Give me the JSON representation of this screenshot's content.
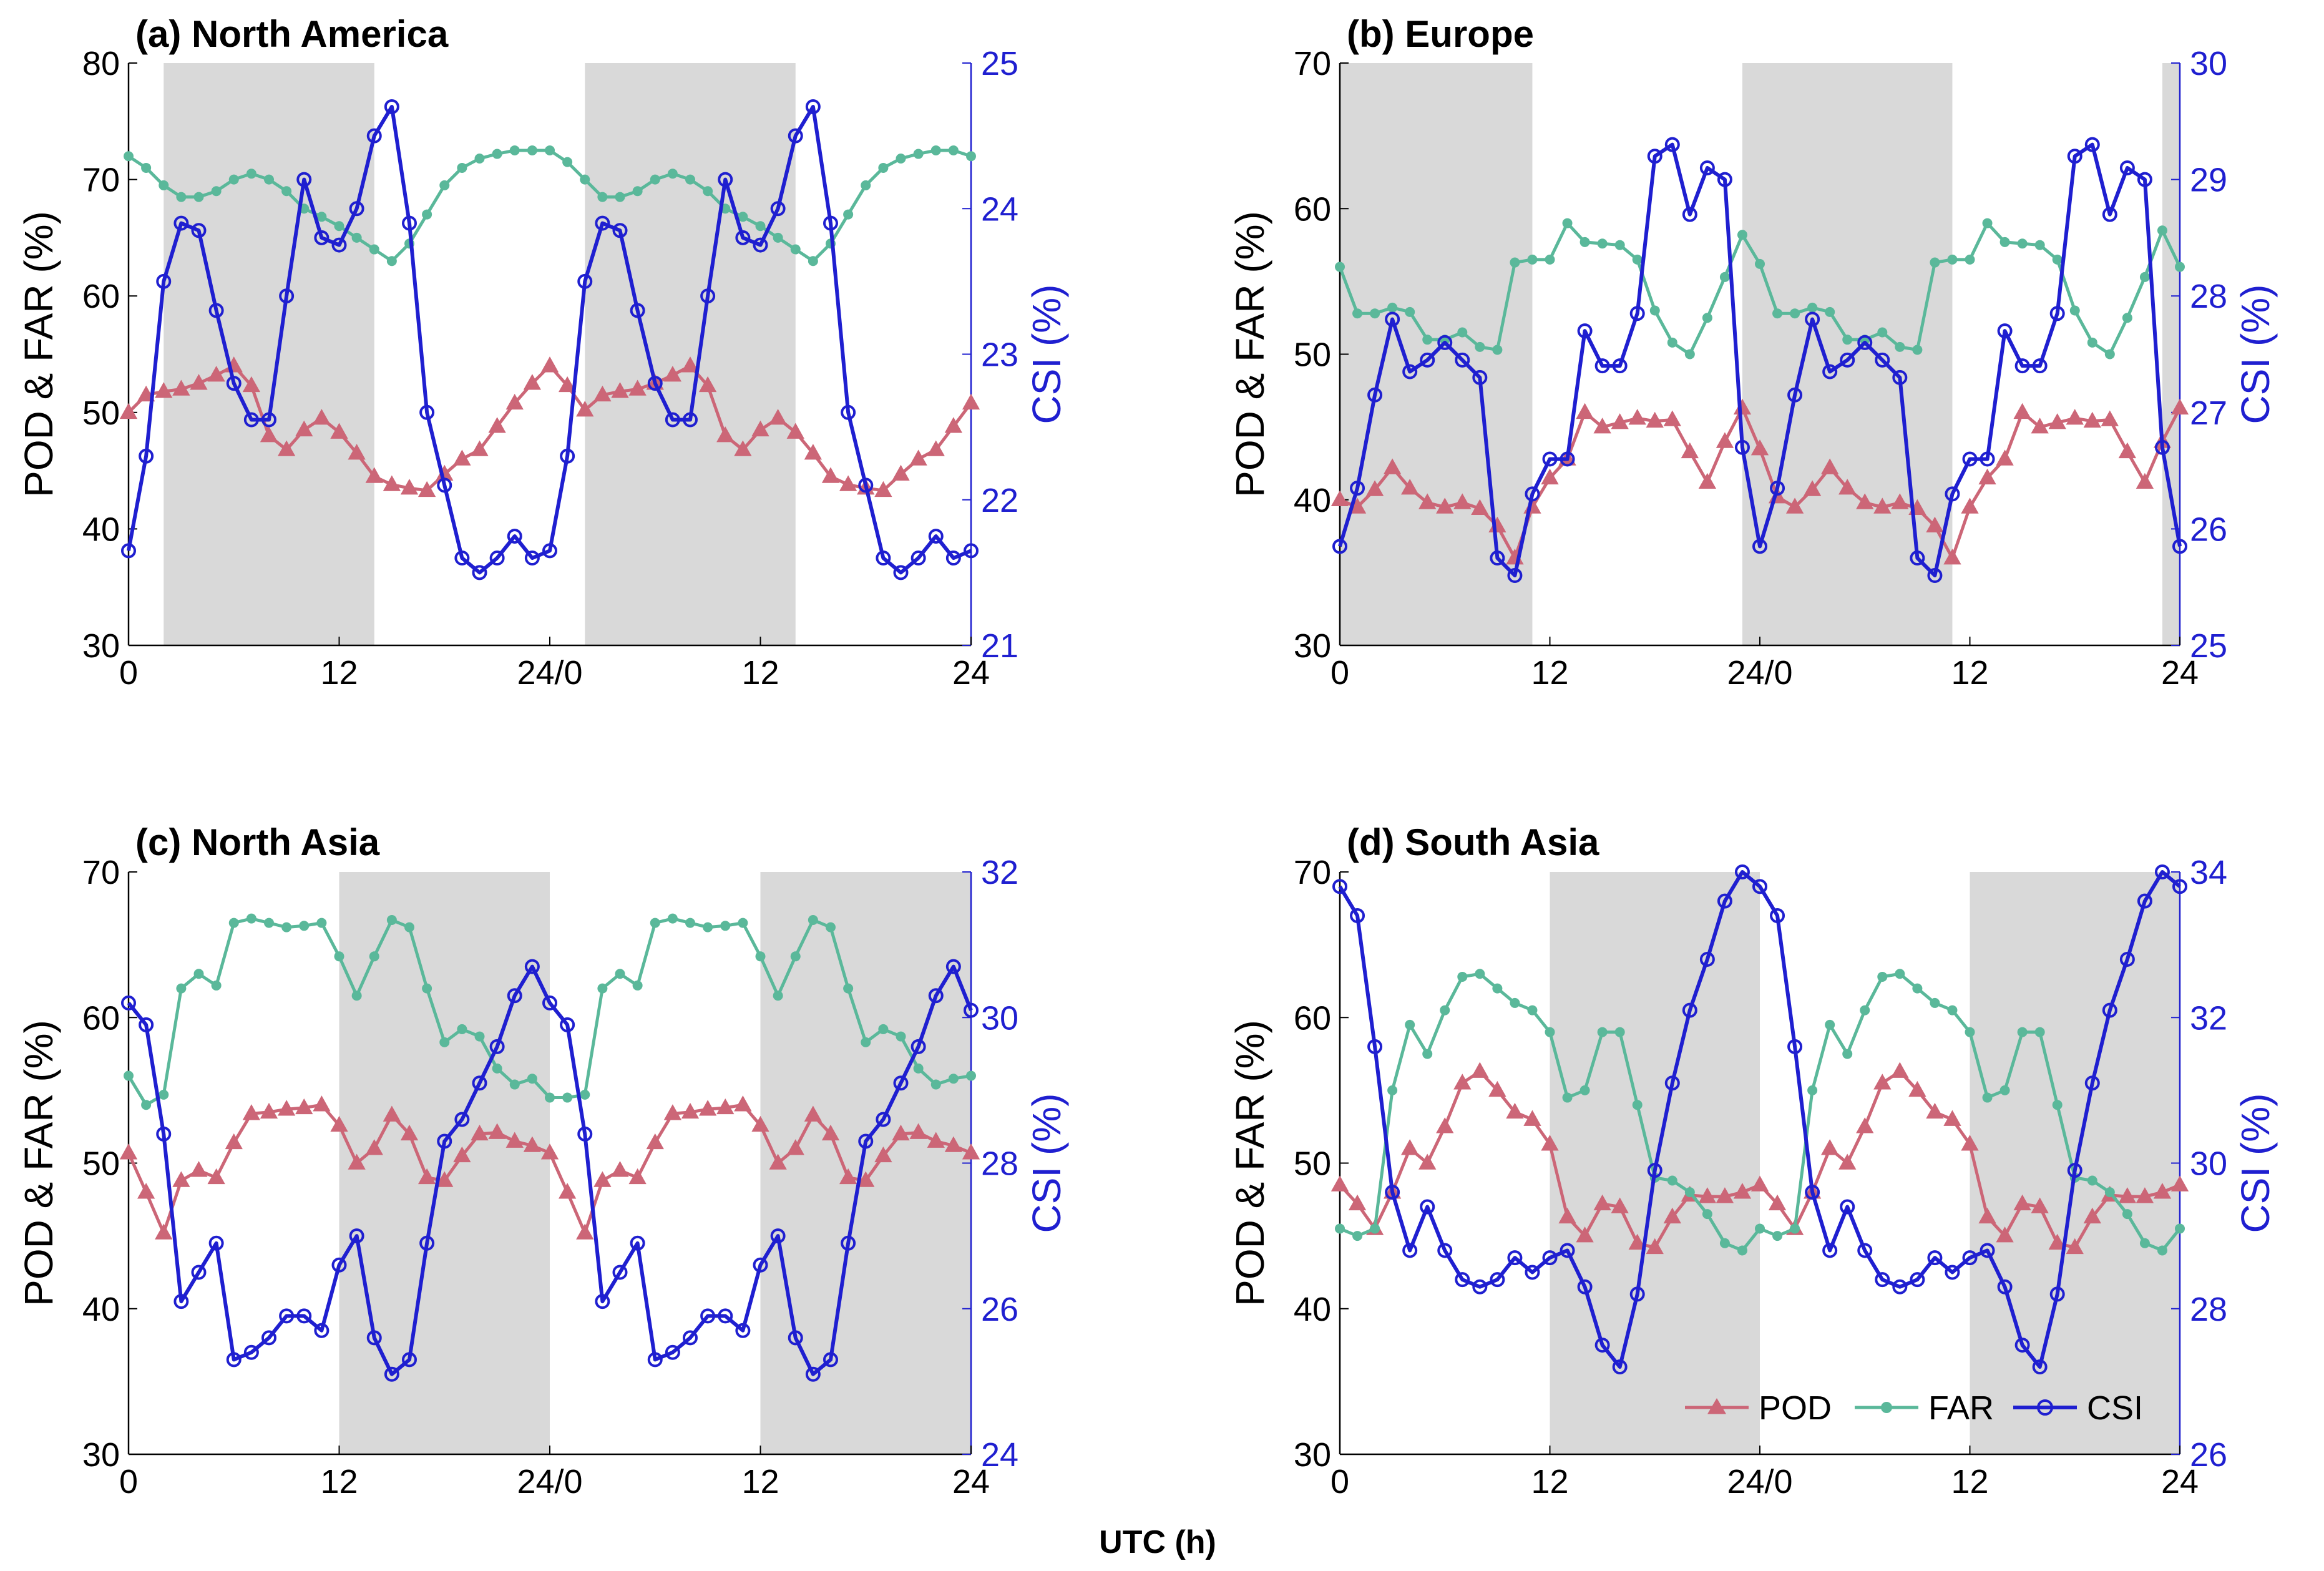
{
  "figure": {
    "xlabel": "UTC (h)",
    "x_tick_labels": [
      "0",
      "12",
      "24/0",
      "12",
      "24"
    ],
    "left_ylabel": "POD & FAR (%)",
    "right_ylabel": "CSI (%)",
    "legend": [
      "POD",
      "FAR",
      "CSI"
    ],
    "colors": {
      "pod": "#cc6677",
      "far": "#5ab89a",
      "csi": "#1f1fd0",
      "shade": "#d9d9d9",
      "axis_right": "#1f1fd0"
    }
  },
  "chart_data": [
    {
      "type": "line",
      "title": "(a) North America",
      "x": [
        0,
        1,
        2,
        3,
        4,
        5,
        6,
        7,
        8,
        9,
        10,
        11,
        12,
        13,
        14,
        15,
        16,
        17,
        18,
        19,
        20,
        21,
        22,
        23,
        24,
        25,
        26,
        27,
        28,
        29,
        30,
        31,
        32,
        33,
        34,
        35,
        36,
        37,
        38,
        39,
        40,
        41,
        42,
        43,
        44,
        45,
        46,
        47,
        48
      ],
      "xlim": [
        0,
        48
      ],
      "shaded": [
        [
          2,
          14
        ],
        [
          26,
          38
        ]
      ],
      "left_ylim": [
        30,
        80
      ],
      "left_yticks": [
        30,
        40,
        50,
        60,
        70,
        80
      ],
      "right_ylim": [
        21,
        25
      ],
      "right_yticks": [
        21,
        22,
        23,
        24,
        25
      ],
      "series": [
        {
          "name": "POD",
          "axis": "left",
          "values": [
            50,
            51.5,
            51.8,
            52,
            52.5,
            53.2,
            54,
            52.3,
            48,
            46.8,
            48.5,
            49.5,
            48.3,
            46.5,
            44.5,
            43.8,
            43.5,
            43.3,
            44.7,
            46,
            46.8,
            48.8,
            50.8,
            52.5,
            54,
            52.3,
            50.2,
            51.5,
            51.8,
            52,
            52.5,
            53.2,
            54,
            52.3,
            48,
            46.8,
            48.5,
            49.5,
            48.3,
            46.5,
            44.5,
            43.8,
            43.5,
            43.3,
            44.7,
            46,
            46.8,
            48.8,
            50.8
          ]
        },
        {
          "name": "FAR",
          "axis": "left",
          "values": [
            72,
            71,
            69.5,
            68.5,
            68.5,
            69,
            70,
            70.5,
            70,
            69,
            67.5,
            66.8,
            66,
            65,
            64,
            63,
            64.5,
            67,
            69.5,
            71,
            71.8,
            72.2,
            72.5,
            72.5,
            72.5,
            71.5,
            70,
            68.5,
            68.5,
            69,
            70,
            70.5,
            70,
            69,
            67.5,
            66.8,
            66,
            65,
            64,
            63,
            64.5,
            67,
            69.5,
            71,
            71.8,
            72.2,
            72.5,
            72.5,
            72
          ]
        },
        {
          "name": "CSI",
          "axis": "right",
          "values": [
            21.65,
            22.3,
            23.5,
            23.9,
            23.85,
            23.3,
            22.8,
            22.55,
            22.55,
            23.4,
            24.2,
            23.8,
            23.75,
            24,
            24.5,
            24.7,
            23.9,
            22.6,
            22.1,
            21.6,
            21.5,
            21.6,
            21.75,
            21.6,
            21.65,
            22.3,
            23.5,
            23.9,
            23.85,
            23.3,
            22.8,
            22.55,
            22.55,
            23.4,
            24.2,
            23.8,
            23.75,
            24,
            24.5,
            24.7,
            23.9,
            22.6,
            22.1,
            21.6,
            21.5,
            21.6,
            21.75,
            21.6,
            21.65
          ]
        }
      ]
    },
    {
      "type": "line",
      "title": "(b) Europe",
      "x": [
        0,
        1,
        2,
        3,
        4,
        5,
        6,
        7,
        8,
        9,
        10,
        11,
        12,
        13,
        14,
        15,
        16,
        17,
        18,
        19,
        20,
        21,
        22,
        23,
        24,
        25,
        26,
        27,
        28,
        29,
        30,
        31,
        32,
        33,
        34,
        35,
        36,
        37,
        38,
        39,
        40,
        41,
        42,
        43,
        44,
        45,
        46,
        47,
        48
      ],
      "xlim": [
        0,
        48
      ],
      "shaded": [
        [
          0,
          11
        ],
        [
          23,
          35
        ],
        [
          47,
          48
        ]
      ],
      "left_ylim": [
        30,
        70
      ],
      "left_yticks": [
        30,
        40,
        50,
        60,
        70
      ],
      "right_ylim": [
        25,
        30
      ],
      "right_yticks": [
        25,
        26,
        27,
        28,
        29,
        30
      ],
      "series": [
        {
          "name": "POD",
          "axis": "left",
          "values": [
            40,
            39.5,
            40.7,
            42.2,
            40.8,
            39.8,
            39.5,
            39.8,
            39.4,
            38.2,
            36,
            39.5,
            41.5,
            42.8,
            46,
            45,
            45.3,
            45.6,
            45.4,
            45.5,
            43.3,
            41.2,
            44,
            46.3,
            43.5,
            40.2,
            39.5,
            40.7,
            42.2,
            40.8,
            39.8,
            39.5,
            39.8,
            39.4,
            38.2,
            36,
            39.5,
            41.5,
            42.8,
            46,
            45,
            45.3,
            45.6,
            45.4,
            45.5,
            43.3,
            41.2,
            44,
            46.3
          ]
        },
        {
          "name": "FAR",
          "axis": "left",
          "values": [
            56,
            52.8,
            52.8,
            53.2,
            52.9,
            51,
            51,
            51.5,
            50.5,
            50.3,
            56.3,
            56.5,
            56.5,
            59,
            57.7,
            57.6,
            57.5,
            56.5,
            53,
            50.8,
            50,
            52.5,
            55.3,
            58.2,
            56.2,
            52.8,
            52.8,
            53.2,
            52.9,
            51,
            51,
            51.5,
            50.5,
            50.3,
            56.3,
            56.5,
            56.5,
            59,
            57.7,
            57.6,
            57.5,
            56.5,
            53,
            50.8,
            50,
            52.5,
            55.3,
            58.5,
            56
          ]
        },
        {
          "name": "CSI",
          "axis": "right",
          "values": [
            25.85,
            26.35,
            27.15,
            27.8,
            27.35,
            27.45,
            27.6,
            27.45,
            27.3,
            25.75,
            25.6,
            26.3,
            26.6,
            26.6,
            27.7,
            27.4,
            27.4,
            27.85,
            29.2,
            29.3,
            28.7,
            29.1,
            29.0,
            26.7,
            25.85,
            26.35,
            27.15,
            27.8,
            27.35,
            27.45,
            27.6,
            27.45,
            27.3,
            25.75,
            25.6,
            26.3,
            26.6,
            26.6,
            27.7,
            27.4,
            27.4,
            27.85,
            29.2,
            29.3,
            28.7,
            29.1,
            29.0,
            26.7,
            25.85
          ]
        }
      ]
    },
    {
      "type": "line",
      "title": "(c) North Asia",
      "x": [
        0,
        1,
        2,
        3,
        4,
        5,
        6,
        7,
        8,
        9,
        10,
        11,
        12,
        13,
        14,
        15,
        16,
        17,
        18,
        19,
        20,
        21,
        22,
        23,
        24,
        25,
        26,
        27,
        28,
        29,
        30,
        31,
        32,
        33,
        34,
        35,
        36,
        37,
        38,
        39,
        40,
        41,
        42,
        43,
        44,
        45,
        46,
        47,
        48
      ],
      "xlim": [
        0,
        48
      ],
      "shaded": [
        [
          12,
          24
        ],
        [
          36,
          48
        ]
      ],
      "left_ylim": [
        30,
        70
      ],
      "left_yticks": [
        30,
        40,
        50,
        60,
        70
      ],
      "right_ylim": [
        24,
        32
      ],
      "right_yticks": [
        24,
        26,
        28,
        30,
        32
      ],
      "series": [
        {
          "name": "POD",
          "axis": "left",
          "values": [
            50.7,
            48,
            45.2,
            48.8,
            49.5,
            49,
            51.4,
            53.4,
            53.5,
            53.7,
            53.8,
            54,
            52.6,
            50,
            51,
            53.3,
            52,
            49,
            48.8,
            50.5,
            52,
            52.1,
            51.5,
            51.2,
            50.7,
            48,
            45.2,
            48.8,
            49.5,
            49,
            51.4,
            53.4,
            53.5,
            53.7,
            53.8,
            54,
            52.6,
            50,
            51,
            53.3,
            52,
            49,
            48.8,
            50.5,
            52,
            52.1,
            51.5,
            51.2,
            50.7
          ]
        },
        {
          "name": "FAR",
          "axis": "left",
          "values": [
            56,
            54,
            54.7,
            62,
            63,
            62.2,
            66.5,
            66.8,
            66.5,
            66.2,
            66.3,
            66.5,
            64.2,
            61.5,
            64.2,
            66.7,
            66.2,
            62,
            58.3,
            59.2,
            58.7,
            56.5,
            55.4,
            55.8,
            54.5,
            54.5,
            54.7,
            62,
            63,
            62.2,
            66.5,
            66.8,
            66.5,
            66.2,
            66.3,
            66.5,
            64.2,
            61.5,
            64.2,
            66.7,
            66.2,
            62,
            58.3,
            59.2,
            58.7,
            56.5,
            55.4,
            55.8,
            56
          ]
        },
        {
          "name": "CSI",
          "axis": "right",
          "values": [
            30.2,
            29.9,
            28.4,
            26.1,
            26.5,
            26.9,
            25.3,
            25.4,
            25.6,
            25.9,
            25.9,
            25.7,
            26.6,
            27,
            25.6,
            25.1,
            25.3,
            26.9,
            28.3,
            28.6,
            29.1,
            29.6,
            30.3,
            30.7,
            30.2,
            29.9,
            28.4,
            26.1,
            26.5,
            26.9,
            25.3,
            25.4,
            25.6,
            25.9,
            25.9,
            25.7,
            26.6,
            27,
            25.6,
            25.1,
            25.3,
            26.9,
            28.3,
            28.6,
            29.1,
            29.6,
            30.3,
            30.7,
            30.1
          ]
        }
      ]
    },
    {
      "type": "line",
      "title": "(d) South Asia",
      "x": [
        0,
        1,
        2,
        3,
        4,
        5,
        6,
        7,
        8,
        9,
        10,
        11,
        12,
        13,
        14,
        15,
        16,
        17,
        18,
        19,
        20,
        21,
        22,
        23,
        24,
        25,
        26,
        27,
        28,
        29,
        30,
        31,
        32,
        33,
        34,
        35,
        36,
        37,
        38,
        39,
        40,
        41,
        42,
        43,
        44,
        45,
        46,
        47,
        48
      ],
      "xlim": [
        0,
        48
      ],
      "shaded": [
        [
          12,
          24
        ],
        [
          36,
          48
        ]
      ],
      "left_ylim": [
        30,
        70
      ],
      "left_yticks": [
        30,
        40,
        50,
        60,
        70
      ],
      "right_ylim": [
        26,
        34
      ],
      "right_yticks": [
        26,
        28,
        30,
        32,
        34
      ],
      "series": [
        {
          "name": "POD",
          "axis": "left",
          "values": [
            48.5,
            47.2,
            45.5,
            48,
            51,
            50,
            52.5,
            55.5,
            56.3,
            55,
            53.5,
            53,
            51.3,
            46.3,
            45,
            47.2,
            47,
            44.5,
            44.2,
            46.3,
            47.8,
            47.7,
            47.7,
            48,
            48.5,
            47.2,
            45.5,
            48,
            51,
            50,
            52.5,
            55.5,
            56.3,
            55,
            53.5,
            53,
            51.3,
            46.3,
            45,
            47.2,
            47,
            44.5,
            44.2,
            46.3,
            47.8,
            47.7,
            47.7,
            48,
            48.5
          ]
        },
        {
          "name": "FAR",
          "axis": "left",
          "values": [
            45.5,
            45,
            45.5,
            55,
            59.5,
            57.5,
            60.5,
            62.8,
            63,
            62,
            61,
            60.5,
            59,
            54.5,
            55,
            59,
            59,
            54,
            49,
            48.8,
            48,
            46.5,
            44.5,
            44,
            45.5,
            45,
            45.5,
            55,
            59.5,
            57.5,
            60.5,
            62.8,
            63,
            62,
            61,
            60.5,
            59,
            54.5,
            55,
            59,
            59,
            54,
            49,
            48.8,
            48,
            46.5,
            44.5,
            44,
            45.5
          ]
        },
        {
          "name": "CSI",
          "axis": "right",
          "values": [
            33.8,
            33.4,
            31.6,
            29.6,
            28.8,
            29.4,
            28.8,
            28.4,
            28.3,
            28.4,
            28.7,
            28.5,
            28.7,
            28.8,
            28.3,
            27.5,
            27.2,
            28.2,
            29.9,
            31.1,
            32.1,
            32.8,
            33.6,
            34,
            33.8,
            33.4,
            31.6,
            29.6,
            28.8,
            29.4,
            28.8,
            28.4,
            28.3,
            28.4,
            28.7,
            28.5,
            28.7,
            28.8,
            28.3,
            27.5,
            27.2,
            28.2,
            29.9,
            31.1,
            32.1,
            32.8,
            33.6,
            34,
            33.8
          ]
        }
      ]
    }
  ]
}
